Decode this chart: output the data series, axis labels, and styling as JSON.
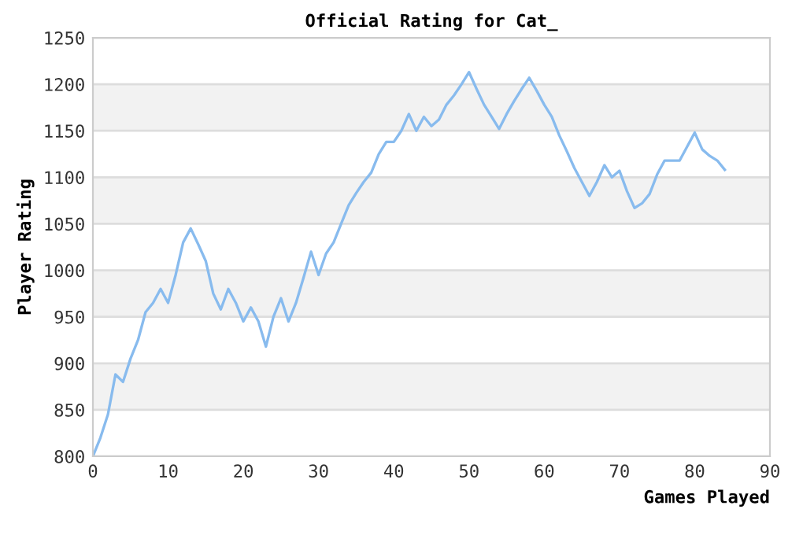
{
  "chart_data": {
    "type": "line",
    "title": "Official Rating for Cat_",
    "xlabel": "Games Played",
    "ylabel": "Player Rating",
    "x": [
      0,
      1,
      2,
      3,
      4,
      5,
      6,
      7,
      8,
      9,
      10,
      11,
      12,
      13,
      14,
      15,
      16,
      17,
      18,
      19,
      20,
      21,
      22,
      23,
      24,
      25,
      26,
      27,
      28,
      29,
      30,
      31,
      32,
      33,
      34,
      35,
      36,
      37,
      38,
      39,
      40,
      41,
      42,
      43,
      44,
      45,
      46,
      47,
      48,
      49,
      50,
      51,
      52,
      53,
      54,
      55,
      56,
      57,
      58,
      59,
      60,
      61,
      62,
      63,
      64,
      65,
      66,
      67,
      68,
      69,
      70,
      71,
      72,
      73,
      74,
      75,
      76,
      77,
      78,
      79,
      80,
      81,
      82,
      83,
      84
    ],
    "series": [
      {
        "color": "#88bbee",
        "values": [
          800,
          820,
          845,
          888,
          880,
          905,
          925,
          955,
          965,
          980,
          965,
          995,
          1030,
          1045,
          1028,
          1010,
          975,
          958,
          980,
          965,
          945,
          960,
          945,
          918,
          950,
          970,
          945,
          965,
          992,
          1020,
          995,
          1018,
          1030,
          1050,
          1070,
          1083,
          1095,
          1105,
          1125,
          1138,
          1138,
          1150,
          1168,
          1150,
          1165,
          1155,
          1162,
          1178,
          1188,
          1200,
          1213,
          1195,
          1178,
          1165,
          1152,
          1168,
          1182,
          1195,
          1207,
          1193,
          1178,
          1165,
          1145,
          1128,
          1110,
          1095,
          1080,
          1095,
          1113,
          1100,
          1107,
          1085,
          1067,
          1072,
          1082,
          1103,
          1118,
          1118,
          1118,
          1133,
          1148,
          1130,
          1123,
          1118,
          1108
        ]
      }
    ],
    "xlim": [
      0,
      90
    ],
    "xticks": [
      0,
      10,
      20,
      30,
      40,
      50,
      60,
      70,
      80,
      90
    ],
    "ylim": [
      800,
      1250
    ],
    "yticks": [
      800,
      850,
      900,
      950,
      1000,
      1050,
      1100,
      1150,
      1200,
      1250
    ],
    "grid": "y",
    "marker": "none",
    "line_style": "solid",
    "legend": false
  }
}
